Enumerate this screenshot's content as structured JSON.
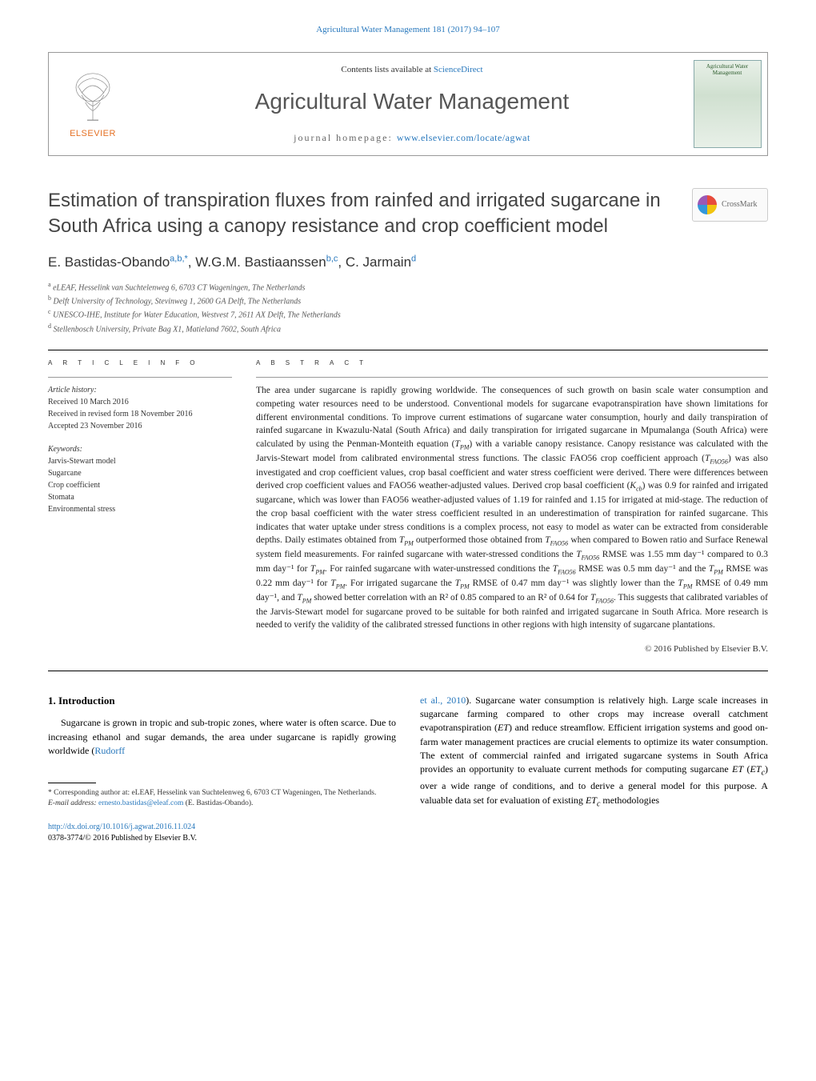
{
  "colors": {
    "link": "#2878bd",
    "publisher_orange": "#e57226",
    "text": "#000000",
    "muted": "#555555",
    "title_gray": "#444444"
  },
  "typography": {
    "body_fontsize": 13,
    "title_fontsize": 24,
    "journal_fontsize": 28,
    "abstract_fontsize": 11.5,
    "footnote_fontsize": 9.5
  },
  "top_header": "Agricultural Water Management 181 (2017) 94–107",
  "header": {
    "contents_prefix": "Contents lists available at ",
    "contents_link": "ScienceDirect",
    "journal_name": "Agricultural Water Management",
    "homepage_label": "journal homepage: ",
    "homepage_url": "www.elsevier.com/locate/agwat",
    "publisher": "ELSEVIER",
    "cover_title": "Agricultural Water Management"
  },
  "crossmark": "CrossMark",
  "title": "Estimation of transpiration fluxes from rainfed and irrigated sugarcane in South Africa using a canopy resistance and crop coefficient model",
  "authors_html": "E. Bastidas-Obando<sup>a,b,*</sup>, W.G.M. Bastiaanssen<sup>b,c</sup>, C. Jarmain<sup>d</sup>",
  "affiliations": [
    "a eLEAF, Hesselink van Suchtelenweg 6, 6703 CT Wageningen, The Netherlands",
    "b Delft University of Technology, Stevinweg 1, 2600 GA Delft, The Netherlands",
    "c UNESCO-IHE, Institute for Water Education, Westvest 7, 2611 AX Delft, The Netherlands",
    "d Stellenbosch University, Private Bag X1, Matieland 7602, South Africa"
  ],
  "info_heading": "A R T I C L E   I N F O",
  "abstract_heading": "A B S T R A C T",
  "history": {
    "label": "Article history:",
    "received": "Received 10 March 2016",
    "revised": "Received in revised form 18 November 2016",
    "accepted": "Accepted 23 November 2016"
  },
  "keywords": {
    "label": "Keywords:",
    "items": [
      "Jarvis-Stewart model",
      "Sugarcane",
      "Crop coefficient",
      "Stomata",
      "Environmental stress"
    ]
  },
  "abstract": "The area under sugarcane is rapidly growing worldwide. The consequences of such growth on basin scale water consumption and competing water resources need to be understood. Conventional models for sugarcane evapotranspiration have shown limitations for different environmental conditions. To improve current estimations of sugarcane water consumption, hourly and daily transpiration of rainfed sugarcane in Kwazulu-Natal (South Africa) and daily transpiration for irrigated sugarcane in Mpumalanga (South Africa) were calculated by using the Penman-Monteith equation (T_PM) with a variable canopy resistance. Canopy resistance was calculated with the Jarvis-Stewart model from calibrated environmental stress functions. The classic FAO56 crop coefficient approach (T_FAO56) was also investigated and crop coefficient values, crop basal coefficient and water stress coefficient were derived. There were differences between derived crop coefficient values and FAO56 weather-adjusted values. Derived crop basal coefficient (K_cb) was 0.9 for rainfed and irrigated sugarcane, which was lower than FAO56 weather-adjusted values of 1.19 for rainfed and 1.15 for irrigated at mid-stage. The reduction of the crop basal coefficient with the water stress coefficient resulted in an underestimation of transpiration for rainfed sugarcane. This indicates that water uptake under stress conditions is a complex process, not easy to model as water can be extracted from considerable depths. Daily estimates obtained from T_PM outperformed those obtained from T_FAO56 when compared to Bowen ratio and Surface Renewal system field measurements. For rainfed sugarcane with water-stressed conditions the T_FAO56 RMSE was 1.55 mm day⁻¹ compared to 0.3 mm day⁻¹ for T_PM. For rainfed sugarcane with water-unstressed conditions the T_FAO56 RMSE was 0.5 mm day⁻¹ and the T_PM RMSE was 0.22 mm day⁻¹ for T_PM. For irrigated sugarcane the T_PM RMSE of 0.47 mm day⁻¹ was slightly lower than the T_PM RMSE of 0.49 mm day⁻¹, and T_PM showed better correlation with an R² of 0.85 compared to an R² of 0.64 for T_FAO56. This suggests that calibrated variables of the Jarvis-Stewart model for sugarcane proved to be suitable for both rainfed and irrigated sugarcane in South Africa. More research is needed to verify the validity of the calibrated stressed functions in other regions with high intensity of sugarcane plantations.",
  "copyright": "© 2016 Published by Elsevier B.V.",
  "body": {
    "section_heading": "1. Introduction",
    "left_para": "Sugarcane is grown in tropic and sub-tropic zones, where water is often scarce. Due to increasing ethanol and sugar demands, the area under sugarcane is rapidly growing worldwide (",
    "left_link": "Rudorff",
    "right_link": "et al., 2010",
    "right_para": "). Sugarcane water consumption is relatively high. Large scale increases in sugarcane farming compared to other crops may increase overall catchment evapotranspiration (ET) and reduce streamflow. Efficient irrigation systems and good on-farm water management practices are crucial elements to optimize its water consumption. The extent of commercial rainfed and irrigated sugarcane systems in South Africa provides an opportunity to evaluate current methods for computing sugarcane ET (ET_c) over a wide range of conditions, and to derive a general model for this purpose. A valuable data set for evaluation of existing ET_c methodologies"
  },
  "footnote": {
    "corresponding": "* Corresponding author at: eLEAF, Hesselink van Suchtelenweg 6, 6703 CT Wageningen, The Netherlands.",
    "email_label": "E-mail address: ",
    "email": "ernesto.bastidas@eleaf.com",
    "email_suffix": " (E. Bastidas-Obando)."
  },
  "bottom": {
    "doi": "http://dx.doi.org/10.1016/j.agwat.2016.11.024",
    "issn_line": "0378-3774/© 2016 Published by Elsevier B.V."
  }
}
